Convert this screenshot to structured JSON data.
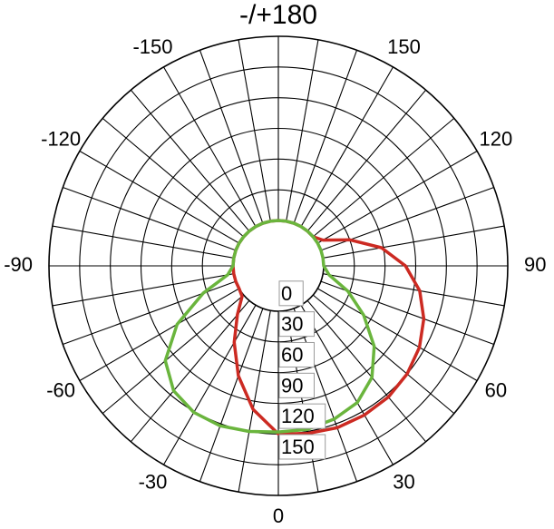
{
  "chart_data": {
    "type": "polar",
    "title": "",
    "angular_ticks": [
      {
        "angle": 180,
        "label": "-/+180"
      },
      {
        "angle": 150,
        "label": "150"
      },
      {
        "angle": -150,
        "label": "-150"
      },
      {
        "angle": 120,
        "label": "120"
      },
      {
        "angle": -120,
        "label": "-120"
      },
      {
        "angle": 90,
        "label": "90"
      },
      {
        "angle": -90,
        "label": "-90"
      },
      {
        "angle": 60,
        "label": "60"
      },
      {
        "angle": -60,
        "label": "-60"
      },
      {
        "angle": 30,
        "label": "30"
      },
      {
        "angle": -30,
        "label": "-30"
      },
      {
        "angle": 0,
        "label": "0"
      }
    ],
    "angular_grid_step_deg": 10,
    "radial_ticks": [
      {
        "value": 0,
        "label": "0"
      },
      {
        "value": 30,
        "label": "30"
      },
      {
        "value": 60,
        "label": "60"
      },
      {
        "value": 90,
        "label": "90"
      },
      {
        "value": 120,
        "label": "120"
      },
      {
        "value": 150,
        "label": "150"
      }
    ],
    "radial_grid": [
      0,
      30,
      60,
      90,
      120,
      150,
      180
    ],
    "radial_max": 180,
    "grid": true,
    "angle_zero_direction": "bottom",
    "angle_direction": "counterclockwise",
    "series": [
      {
        "color": "#cc2a22",
        "angles_deg": [
          0,
          10,
          20,
          30,
          40,
          50,
          60,
          70,
          80,
          90,
          100,
          110,
          120,
          130,
          140,
          150,
          160,
          170,
          180,
          190,
          200,
          210,
          220,
          230,
          240,
          250,
          260,
          270,
          280,
          290,
          300,
          310,
          320,
          330,
          340,
          350,
          360
        ],
        "r": [
          120,
          122,
          124,
          124,
          123,
          120,
          115,
          107,
          96,
          80,
          58,
          30,
          6,
          0,
          0,
          0,
          0,
          0,
          0,
          0,
          0,
          0,
          0,
          0,
          0,
          0,
          0,
          0,
          0,
          0,
          0,
          2,
          18,
          42,
          70,
          98,
          120
        ]
      },
      {
        "color": "#6ab53d",
        "angles_deg": [
          0,
          10,
          20,
          30,
          40,
          50,
          60,
          70,
          80,
          90,
          100,
          110,
          120,
          130,
          140,
          150,
          160,
          170,
          180,
          190,
          200,
          210,
          220,
          230,
          240,
          250,
          260,
          270,
          280,
          290,
          300,
          310,
          320,
          330,
          340,
          350,
          360
        ],
        "r": [
          118,
          118,
          115,
          110,
          98,
          78,
          52,
          28,
          6,
          0,
          0,
          0,
          0,
          0,
          0,
          0,
          0,
          0,
          0,
          0,
          0,
          0,
          0,
          0,
          0,
          0,
          0,
          0,
          6,
          34,
          70,
          100,
          115,
          121,
          122,
          120,
          118
        ]
      }
    ]
  }
}
